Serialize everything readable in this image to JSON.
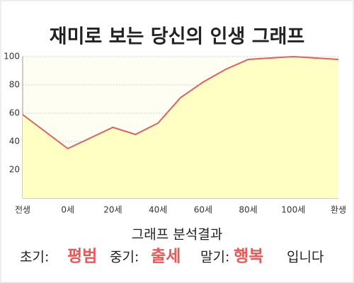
{
  "chart_data": {
    "type": "area",
    "title": "재미로 보는 당신의 인생 그래프",
    "categories": [
      "전생",
      null,
      "0세",
      null,
      "20세",
      null,
      "40세",
      null,
      "60세",
      null,
      "80세",
      null,
      "100세",
      null,
      "환생"
    ],
    "values": [
      59,
      47,
      35,
      42.5,
      50,
      45,
      53,
      71,
      82,
      91,
      98,
      99,
      100,
      99,
      98
    ],
    "color": "#e06060",
    "fill": "#ffffc4",
    "ylim": [
      0,
      100
    ],
    "yticks": [
      20,
      40,
      60,
      80,
      100
    ],
    "grid": true
  },
  "result": {
    "heading": "그래프 분석결과",
    "early_label": "초기:",
    "early": "평범",
    "middle_label": "중기:",
    "middle": "출세",
    "late_label": "말기:",
    "late": "행복",
    "ending": "입니다"
  }
}
